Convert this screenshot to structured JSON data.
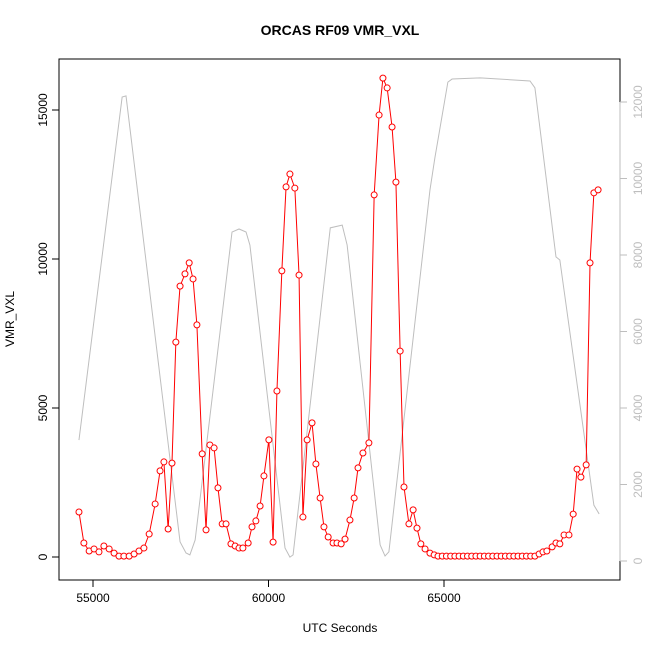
{
  "chart_data": {
    "type": "line",
    "title": "ORCAS RF09 VMR_VXL",
    "x_label": "UTC Seconds",
    "y_label": "VMR_VXL",
    "xlim": [
      54031,
      70014
    ],
    "ylim": [
      -772,
      16711
    ],
    "y2lim": [
      -497,
      13124
    ],
    "xticks": [
      55000,
      60000,
      65000
    ],
    "yticks": [
      0,
      5000,
      10000,
      15000
    ],
    "y2ticks": [
      0,
      2000,
      4000,
      6000,
      8000,
      10000,
      12000
    ],
    "series": [
      {
        "color": "#ff0000",
        "points": true,
        "x": [
          54600,
          54740,
          54890,
          55030,
          55170,
          55310,
          55460,
          55600,
          55740,
          55880,
          56030,
          56170,
          56310,
          56450,
          56600,
          56770,
          56910,
          57020,
          57140,
          57250,
          57360,
          57480,
          57620,
          57740,
          57850,
          57960,
          58110,
          58220,
          58330,
          58450,
          58560,
          58680,
          58790,
          58930,
          59050,
          59160,
          59270,
          59420,
          59530,
          59640,
          59760,
          59870,
          60010,
          60130,
          60240,
          60380,
          60500,
          60610,
          60750,
          60870,
          60980,
          61100,
          61240,
          61350,
          61470,
          61580,
          61700,
          61840,
          61950,
          62070,
          62180,
          62320,
          62440,
          62550,
          62690,
          62860,
          63010,
          63150,
          63260,
          63380,
          63520,
          63630,
          63750,
          63860,
          64000,
          64120,
          64230,
          64340,
          64460,
          64600,
          64720,
          64830,
          64950,
          65070,
          65190,
          65310,
          65430,
          65550,
          65670,
          65790,
          65910,
          66030,
          66150,
          66270,
          66390,
          66510,
          66630,
          66750,
          66870,
          66990,
          67110,
          67230,
          67350,
          67470,
          67590,
          67710,
          67820,
          67930,
          68080,
          68190,
          68300,
          68420,
          68560,
          68680,
          68790,
          68900,
          69050,
          69160,
          69270,
          69390
        ],
        "values": [
          1510,
          470,
          200,
          270,
          170,
          370,
          270,
          130,
          30,
          30,
          30,
          100,
          200,
          300,
          770,
          1780,
          2890,
          3190,
          940,
          3150,
          7210,
          9090,
          9500,
          9870,
          9330,
          7790,
          3460,
          910,
          3760,
          3660,
          2320,
          1110,
          1110,
          440,
          370,
          300,
          300,
          470,
          1010,
          1210,
          1710,
          2720,
          3930,
          500,
          5570,
          9600,
          12420,
          12850,
          12380,
          9460,
          1340,
          3930,
          4500,
          3120,
          1980,
          1010,
          670,
          470,
          470,
          440,
          600,
          1240,
          1980,
          2990,
          3490,
          3830,
          12150,
          14830,
          16070,
          15740,
          14430,
          12580,
          6910,
          2350,
          1110,
          1580,
          970,
          440,
          270,
          130,
          70,
          30,
          30,
          30,
          30,
          30,
          30,
          30,
          30,
          30,
          30,
          30,
          30,
          30,
          30,
          30,
          30,
          30,
          30,
          30,
          30,
          30,
          30,
          30,
          30,
          100,
          170,
          200,
          340,
          470,
          440,
          740,
          740,
          1440,
          2950,
          2680,
          3090,
          9870,
          12220,
          12320
        ]
      },
      {
        "color": "#bebebe",
        "axis": "y2",
        "points": false,
        "x": [
          54600,
          55830,
          55940,
          57480,
          57650,
          57760,
          57910,
          58960,
          59160,
          59360,
          59470,
          60470,
          60610,
          60700,
          61760,
          62100,
          62240,
          63180,
          63320,
          63430,
          64600,
          64740,
          65110,
          65230,
          66030,
          67450,
          67590,
          68190,
          68300,
          69270,
          69420
        ],
        "values": [
          3160,
          12130,
          12160,
          500,
          210,
          160,
          550,
          8600,
          8680,
          8600,
          8260,
          340,
          100,
          160,
          8710,
          8780,
          8260,
          420,
          130,
          240,
          9700,
          10540,
          12520,
          12600,
          12630,
          12550,
          12370,
          7950,
          7870,
          1460,
          1230
        ]
      }
    ]
  }
}
